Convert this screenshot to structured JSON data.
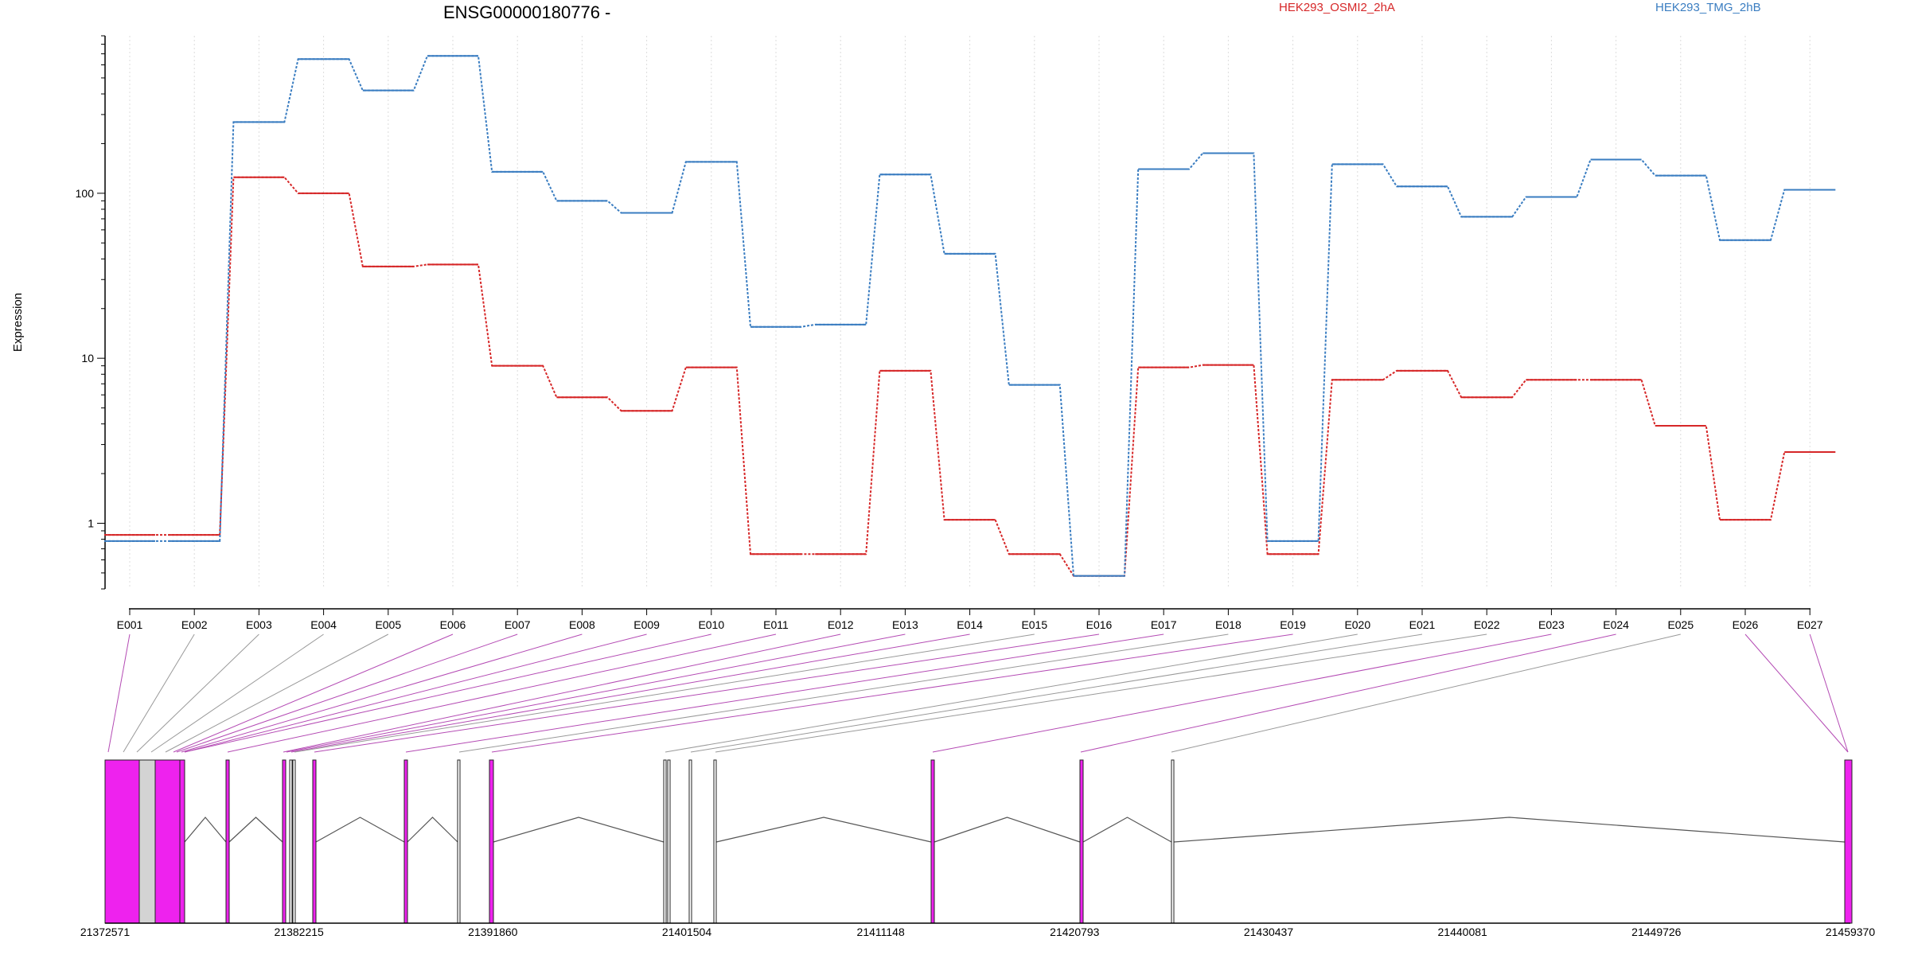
{
  "chart_data": {
    "type": "line",
    "title": "ENSG00000180776 -",
    "ylabel": "Expression",
    "xlabel": "",
    "yscale": "log",
    "ylim": [
      0.4,
      900
    ],
    "yticks": [
      {
        "value": 1,
        "label": "1"
      },
      {
        "value": 10,
        "label": "10"
      },
      {
        "value": 100,
        "label": "100"
      }
    ],
    "legend_position": "top",
    "grid": "vertical-dotted",
    "categories": [
      "E001",
      "E002",
      "E003",
      "E004",
      "E005",
      "E006",
      "E007",
      "E008",
      "E009",
      "E010",
      "E011",
      "E012",
      "E013",
      "E014",
      "E015",
      "E016",
      "E017",
      "E018",
      "E019",
      "E020",
      "E021",
      "E022",
      "E023",
      "E024",
      "E025",
      "E026",
      "E027"
    ],
    "series": [
      {
        "name": "HEK293_OSMI2_2hA",
        "color": "#d62728",
        "values": [
          0.85,
          0.85,
          125,
          100,
          36,
          37,
          9,
          5.8,
          4.8,
          8.8,
          0.65,
          0.65,
          8.4,
          1.05,
          0.65,
          0.48,
          8.8,
          9.1,
          0.65,
          7.4,
          8.4,
          5.8,
          7.4,
          7.4,
          3.9,
          1.05,
          2.7
        ]
      },
      {
        "name": "HEK293_TMG_2hB",
        "color": "#3a7dc1",
        "values": [
          0.78,
          0.78,
          270,
          650,
          420,
          680,
          135,
          90,
          76,
          155,
          15.5,
          16,
          130,
          43,
          6.9,
          0.48,
          140,
          175,
          0.78,
          150,
          110,
          72,
          95,
          160,
          128,
          52,
          105
        ]
      }
    ],
    "gene_model": {
      "coord_ticks": [
        "21372571",
        "21382215",
        "21391860",
        "21401504",
        "21411148",
        "21420793",
        "21430437",
        "21440081",
        "21449726",
        "21459370"
      ],
      "exon_colors": {
        "highlighted": "#ee22ee",
        "normal": "#ffffff",
        "dim": "#d3d3d3"
      }
    }
  }
}
